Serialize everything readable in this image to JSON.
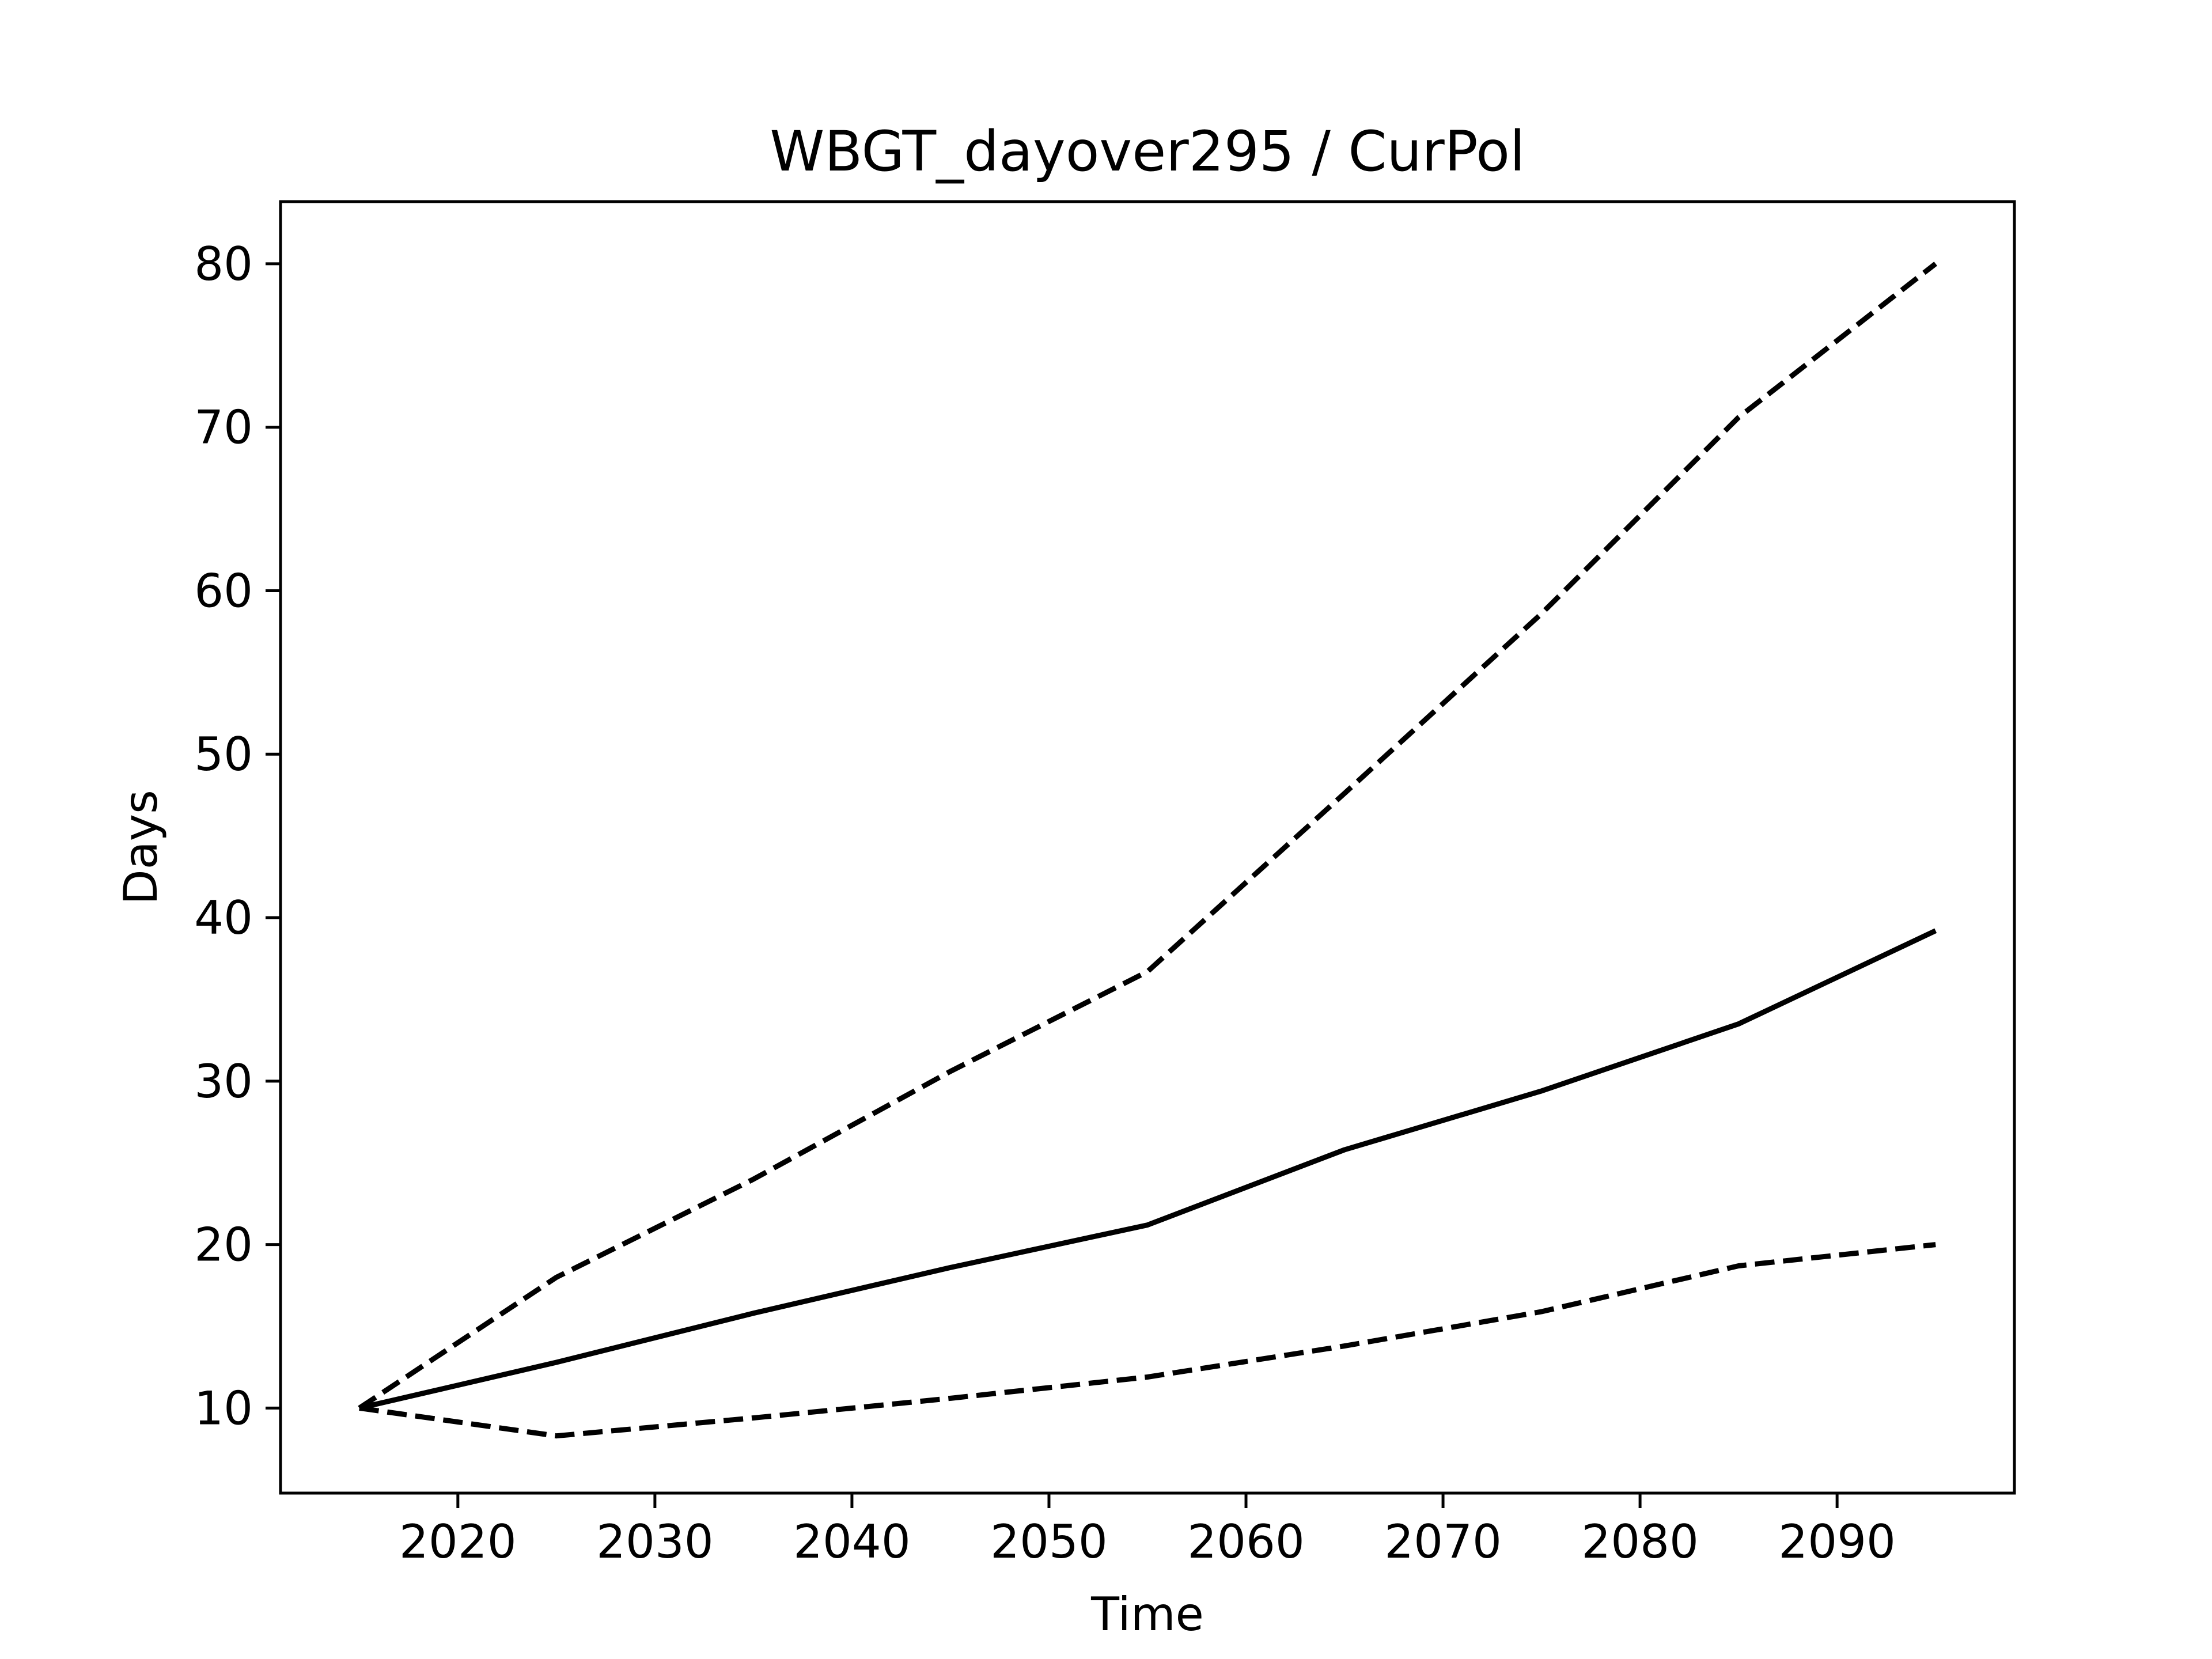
{
  "chart_data": {
    "type": "line",
    "title": "WBGT_dayover295 / CurPol",
    "xlabel": "Time",
    "ylabel": "Days",
    "xlim": [
      2011,
      2099
    ],
    "ylim": [
      4.8,
      83.8
    ],
    "xticks": [
      2020,
      2030,
      2040,
      2050,
      2060,
      2070,
      2080,
      2090
    ],
    "yticks": [
      10,
      20,
      30,
      40,
      50,
      60,
      70,
      80
    ],
    "grid": false,
    "legend": "none",
    "x": [
      2015,
      2025,
      2035,
      2045,
      2055,
      2065,
      2075,
      2085,
      2095
    ],
    "series": [
      {
        "style": "solid",
        "color": "#000000",
        "values": [
          10.0,
          12.8,
          15.8,
          18.6,
          21.2,
          25.8,
          29.4,
          33.5,
          39.2
        ]
      },
      {
        "style": "dashed",
        "color": "#000000",
        "values": [
          10.0,
          18.0,
          24.0,
          30.6,
          36.7,
          47.6,
          58.6,
          70.6,
          80.0
        ]
      },
      {
        "style": "dashed",
        "color": "#000000",
        "values": [
          10.0,
          8.3,
          9.4,
          10.6,
          11.9,
          13.8,
          15.9,
          18.7,
          20.0
        ]
      }
    ]
  }
}
